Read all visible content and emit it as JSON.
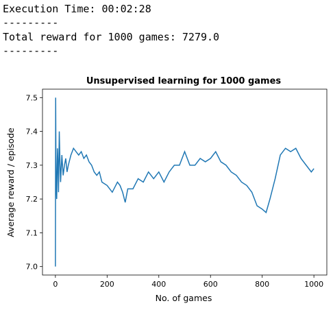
{
  "output_lines": [
    "Execution Time: 00:02:28",
    "---------",
    "Total reward for 1000 games: 7279.0",
    "---------"
  ],
  "chart_data": {
    "type": "line",
    "title": "Unsupervised learning for 1000 games",
    "x_label": "No. of games",
    "y_label": "Average reward / episode",
    "xlim": [
      -50,
      1050
    ],
    "ylim": [
      6.975,
      7.525
    ],
    "xticks": [
      0,
      200,
      400,
      600,
      800,
      1000
    ],
    "yticks": [
      {
        "value": 7,
        "label": "7.0"
      },
      7.1,
      7.2,
      7.3,
      7.4,
      7.5
    ],
    "series": [
      {
        "name": "reward",
        "color": "#1f77b4",
        "x": [
          0,
          1,
          2,
          3,
          5,
          8,
          10,
          12,
          15,
          18,
          20,
          25,
          30,
          35,
          40,
          45,
          50,
          60,
          70,
          80,
          90,
          100,
          110,
          120,
          130,
          140,
          150,
          160,
          170,
          180,
          200,
          220,
          240,
          250,
          260,
          270,
          280,
          300,
          320,
          340,
          360,
          380,
          400,
          420,
          440,
          460,
          480,
          500,
          520,
          540,
          560,
          580,
          600,
          620,
          640,
          660,
          680,
          700,
          720,
          740,
          760,
          780,
          800,
          815,
          830,
          850,
          870,
          890,
          910,
          930,
          950,
          970,
          990,
          1000
        ],
        "values": [
          7.0,
          7.5,
          7.33,
          7.25,
          7.2,
          7.35,
          7.3,
          7.22,
          7.4,
          7.3,
          7.25,
          7.33,
          7.27,
          7.3,
          7.32,
          7.28,
          7.3,
          7.33,
          7.35,
          7.34,
          7.33,
          7.34,
          7.32,
          7.33,
          7.31,
          7.3,
          7.28,
          7.27,
          7.28,
          7.25,
          7.24,
          7.22,
          7.25,
          7.24,
          7.22,
          7.19,
          7.23,
          7.23,
          7.26,
          7.25,
          7.28,
          7.26,
          7.28,
          7.25,
          7.28,
          7.3,
          7.3,
          7.34,
          7.3,
          7.3,
          7.32,
          7.31,
          7.32,
          7.34,
          7.31,
          7.3,
          7.28,
          7.27,
          7.25,
          7.24,
          7.22,
          7.18,
          7.17,
          7.16,
          7.2,
          7.26,
          7.33,
          7.35,
          7.34,
          7.35,
          7.32,
          7.3,
          7.28,
          7.29
        ]
      }
    ]
  }
}
